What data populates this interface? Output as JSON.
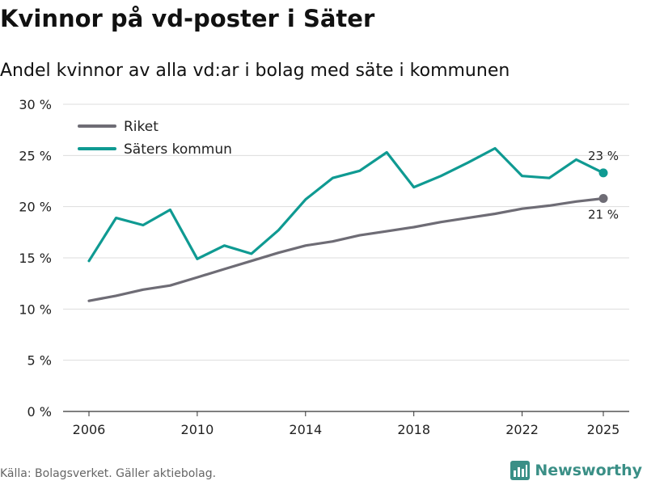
{
  "title": "Kvinnor på vd-poster i Säter",
  "subtitle": "Andel kvinnor av alla vd:ar i bolag med säte i kommunen",
  "source": "Källa: Bolagsverket. Gäller aktiebolag.",
  "brand": "Newsworthy",
  "chart_data": {
    "type": "line",
    "x": [
      2006,
      2007,
      2008,
      2009,
      2010,
      2011,
      2012,
      2013,
      2014,
      2015,
      2016,
      2017,
      2018,
      2019,
      2020,
      2021,
      2022,
      2023,
      2024,
      2025
    ],
    "x_ticks": [
      "2006",
      "2010",
      "2014",
      "2018",
      "2022",
      "2025"
    ],
    "y_ticks": [
      "0 %",
      "5 %",
      "10 %",
      "15 %",
      "20 %",
      "25 %",
      "30 %"
    ],
    "ylim": [
      0,
      30
    ],
    "grid": true,
    "legend": "top-left",
    "series": [
      {
        "name": "Riket",
        "color": "#6e6c75",
        "values": [
          10.8,
          11.3,
          11.9,
          12.3,
          13.1,
          13.9,
          14.7,
          15.5,
          16.2,
          16.6,
          17.2,
          17.6,
          18.0,
          18.5,
          18.9,
          19.3,
          19.8,
          20.1,
          20.5,
          20.8
        ],
        "end_label": "21 %"
      },
      {
        "name": "Säters kommun",
        "color": "#0f9a92",
        "values": [
          14.7,
          18.9,
          18.2,
          19.7,
          14.9,
          16.2,
          15.4,
          17.7,
          20.7,
          22.8,
          23.5,
          25.3,
          21.9,
          23.0,
          24.3,
          25.7,
          23.0,
          22.8,
          24.6,
          23.3
        ],
        "end_label": "23 %"
      }
    ]
  }
}
